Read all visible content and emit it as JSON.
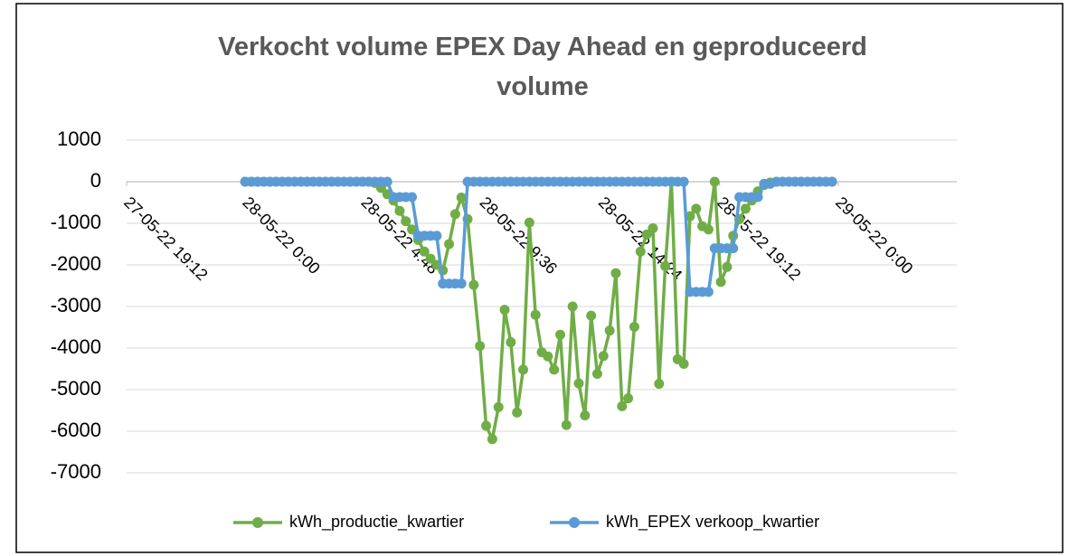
{
  "chart_data": {
    "type": "line",
    "title": "Verkocht volume EPEX Day Ahead en geproduceerd volume",
    "x": [
      "28-05-22 0:00",
      "28-05-22 0:15",
      "28-05-22 0:30",
      "28-05-22 0:45",
      "28-05-22 1:00",
      "28-05-22 1:15",
      "28-05-22 1:30",
      "28-05-22 1:45",
      "28-05-22 2:00",
      "28-05-22 2:15",
      "28-05-22 2:30",
      "28-05-22 2:45",
      "28-05-22 3:00",
      "28-05-22 3:15",
      "28-05-22 3:30",
      "28-05-22 3:45",
      "28-05-22 4:00",
      "28-05-22 4:15",
      "28-05-22 4:30",
      "28-05-22 4:45",
      "28-05-22 5:00",
      "28-05-22 5:15",
      "28-05-22 5:30",
      "28-05-22 5:45",
      "28-05-22 6:00",
      "28-05-22 6:15",
      "28-05-22 6:30",
      "28-05-22 6:45",
      "28-05-22 7:00",
      "28-05-22 7:15",
      "28-05-22 7:30",
      "28-05-22 7:45",
      "28-05-22 8:00",
      "28-05-22 8:15",
      "28-05-22 8:30",
      "28-05-22 8:45",
      "28-05-22 9:00",
      "28-05-22 9:15",
      "28-05-22 9:30",
      "28-05-22 9:45",
      "28-05-22 10:00",
      "28-05-22 10:15",
      "28-05-22 10:30",
      "28-05-22 10:45",
      "28-05-22 11:00",
      "28-05-22 11:15",
      "28-05-22 11:30",
      "28-05-22 11:45",
      "28-05-22 12:00",
      "28-05-22 12:15",
      "28-05-22 12:30",
      "28-05-22 12:45",
      "28-05-22 13:00",
      "28-05-22 13:15",
      "28-05-22 13:30",
      "28-05-22 13:45",
      "28-05-22 14:00",
      "28-05-22 14:15",
      "28-05-22 14:30",
      "28-05-22 14:45",
      "28-05-22 15:00",
      "28-05-22 15:15",
      "28-05-22 15:30",
      "28-05-22 15:45",
      "28-05-22 16:00",
      "28-05-22 16:15",
      "28-05-22 16:30",
      "28-05-22 16:45",
      "28-05-22 17:00",
      "28-05-22 17:15",
      "28-05-22 17:30",
      "28-05-22 17:45",
      "28-05-22 18:00",
      "28-05-22 18:15",
      "28-05-22 18:30",
      "28-05-22 18:45",
      "28-05-22 19:00",
      "28-05-22 19:15",
      "28-05-22 19:30",
      "28-05-22 19:45",
      "28-05-22 20:00",
      "28-05-22 20:15",
      "28-05-22 20:30",
      "28-05-22 20:45",
      "28-05-22 21:00",
      "28-05-22 21:15",
      "28-05-22 21:30",
      "28-05-22 21:45",
      "28-05-22 22:00",
      "28-05-22 22:15",
      "28-05-22 22:30",
      "28-05-22 22:45",
      "28-05-22 23:00",
      "28-05-22 23:15",
      "28-05-22 23:30",
      "28-05-22 23:45"
    ],
    "series": [
      {
        "name": "kWh_productie_kwartier",
        "color": "#70ad47",
        "values": [
          0,
          0,
          0,
          0,
          0,
          0,
          0,
          0,
          0,
          0,
          0,
          0,
          0,
          0,
          0,
          0,
          0,
          0,
          0,
          0,
          0,
          -30,
          -150,
          -300,
          -450,
          -700,
          -950,
          -1150,
          -1400,
          -1680,
          -1850,
          -2000,
          -2130,
          -1500,
          -780,
          -380,
          -900,
          -2480,
          -3950,
          -5870,
          -6190,
          -5420,
          -3080,
          -3860,
          -5550,
          -4520,
          -980,
          -3200,
          -4100,
          -4200,
          -4520,
          -3680,
          -5850,
          -3000,
          -4850,
          -5620,
          -3220,
          -4620,
          -4190,
          -3580,
          -2200,
          -5400,
          -5210,
          -3490,
          -1680,
          -1270,
          -1120,
          -4860,
          -2030,
          0,
          -4270,
          -4380,
          -830,
          -650,
          -1070,
          -1150,
          0,
          -2410,
          -2050,
          -1300,
          -900,
          -650,
          -450,
          -230,
          -80,
          -20,
          0,
          0,
          0,
          0,
          0,
          0,
          0,
          0,
          0,
          0
        ]
      },
      {
        "name": "kWh_EPEX verkoop_kwartier",
        "color": "#5b9bd5",
        "values": [
          0,
          0,
          0,
          0,
          0,
          0,
          0,
          0,
          0,
          0,
          0,
          0,
          0,
          0,
          0,
          0,
          0,
          0,
          0,
          0,
          0,
          0,
          0,
          0,
          -370,
          -370,
          -370,
          -370,
          -1300,
          -1300,
          -1300,
          -1300,
          -2450,
          -2450,
          -2450,
          -2450,
          0,
          0,
          0,
          0,
          0,
          0,
          0,
          0,
          0,
          0,
          0,
          0,
          0,
          0,
          0,
          0,
          0,
          0,
          0,
          0,
          0,
          0,
          0,
          0,
          0,
          0,
          0,
          0,
          0,
          0,
          0,
          0,
          0,
          0,
          0,
          0,
          -2650,
          -2650,
          -2650,
          -2650,
          -1600,
          -1600,
          -1600,
          -1600,
          -370,
          -370,
          -370,
          -370,
          -50,
          -50,
          0,
          0,
          0,
          0,
          0,
          0,
          0,
          0,
          0,
          0
        ]
      }
    ],
    "xlim": [
      "27-05-22 19:12",
      "29-05-22 4:48"
    ],
    "xticks": [
      "27-05-22 19:12",
      "28-05-22 0:00",
      "28-05-22 4:48",
      "28-05-22 9:36",
      "28-05-22 14:24",
      "28-05-22 19:12",
      "29-05-22 0:00"
    ],
    "ylim": [
      -7000,
      1000
    ],
    "yticks": [
      1000,
      0,
      -1000,
      -2000,
      -3000,
      -4000,
      -5000,
      -6000,
      -7000
    ],
    "grid": true,
    "legend": "bottom"
  }
}
